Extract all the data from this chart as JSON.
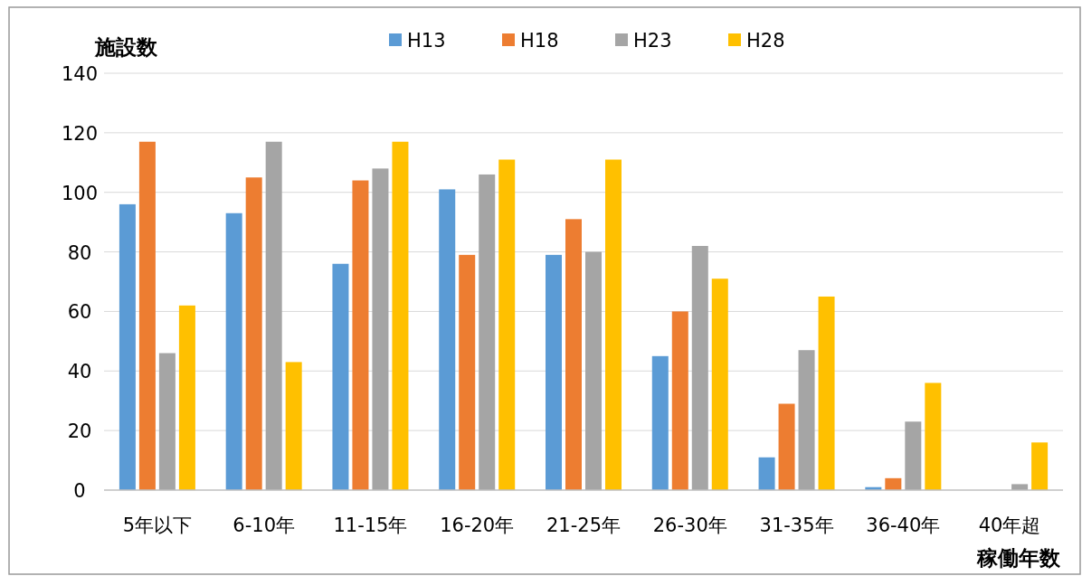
{
  "chart_data": {
    "type": "bar",
    "ylabel": "施設数",
    "xlabel": "稼働年数",
    "categories": [
      "5年以下",
      "6-10年",
      "11-15年",
      "16-20年",
      "21-25年",
      "26-30年",
      "31-35年",
      "36-40年",
      "40年超"
    ],
    "series": [
      {
        "name": "H13",
        "color": "#5b9bd5",
        "values": [
          96,
          93,
          76,
          101,
          79,
          45,
          11,
          1,
          null
        ]
      },
      {
        "name": "H18",
        "color": "#ed7d31",
        "values": [
          117,
          105,
          104,
          79,
          91,
          60,
          29,
          4,
          null
        ]
      },
      {
        "name": "H23",
        "color": "#a5a5a5",
        "values": [
          46,
          117,
          108,
          106,
          80,
          82,
          47,
          23,
          2
        ]
      },
      {
        "name": "H28",
        "color": "#ffc000",
        "values": [
          62,
          43,
          117,
          111,
          111,
          71,
          65,
          36,
          16
        ]
      }
    ],
    "ylim": [
      0,
      140
    ],
    "yticks": [
      0,
      20,
      40,
      60,
      80,
      100,
      120,
      140
    ],
    "grid": "y",
    "legend": "top"
  }
}
